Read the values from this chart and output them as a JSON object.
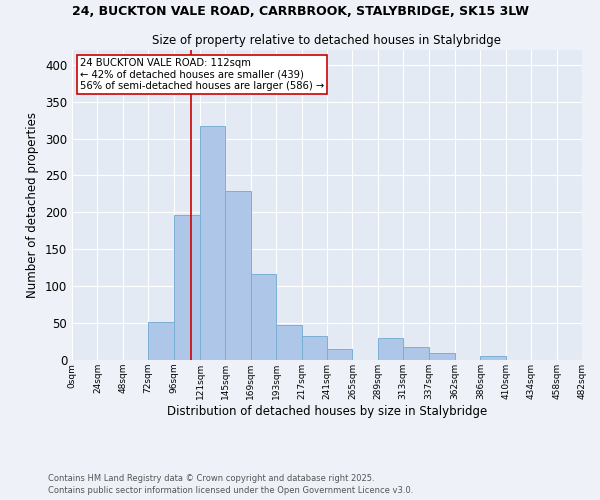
{
  "title1": "24, BUCKTON VALE ROAD, CARRBROOK, STALYBRIDGE, SK15 3LW",
  "title2": "Size of property relative to detached houses in Stalybridge",
  "xlabel": "Distribution of detached houses by size in Stalybridge",
  "ylabel": "Number of detached properties",
  "bar_edges": [
    0,
    24,
    48,
    72,
    96,
    121,
    145,
    169,
    193,
    217,
    241,
    265,
    289,
    313,
    337,
    362,
    386,
    410,
    434,
    458,
    482
  ],
  "bar_heights": [
    0,
    0,
    0,
    51,
    197,
    317,
    229,
    116,
    47,
    32,
    15,
    0,
    30,
    18,
    10,
    0,
    5,
    0,
    0,
    0
  ],
  "bar_color": "#aec6e8",
  "bar_edge_color": "#7aafd4",
  "property_sqm": 112,
  "property_label": "24 BUCKTON VALE ROAD: 112sqm",
  "annotation_line1": "← 42% of detached houses are smaller (439)",
  "annotation_line2": "56% of semi-detached houses are larger (586) →",
  "vline_color": "#cc0000",
  "annotation_box_color": "#ffffff",
  "annotation_box_edge": "#cc0000",
  "footer1": "Contains HM Land Registry data © Crown copyright and database right 2025.",
  "footer2": "Contains public sector information licensed under the Open Government Licence v3.0.",
  "ylim": [
    0,
    420
  ],
  "yticks": [
    0,
    50,
    100,
    150,
    200,
    250,
    300,
    350,
    400
  ],
  "bg_color": "#eef2f8",
  "plot_bg_color": "#e4eaf4"
}
